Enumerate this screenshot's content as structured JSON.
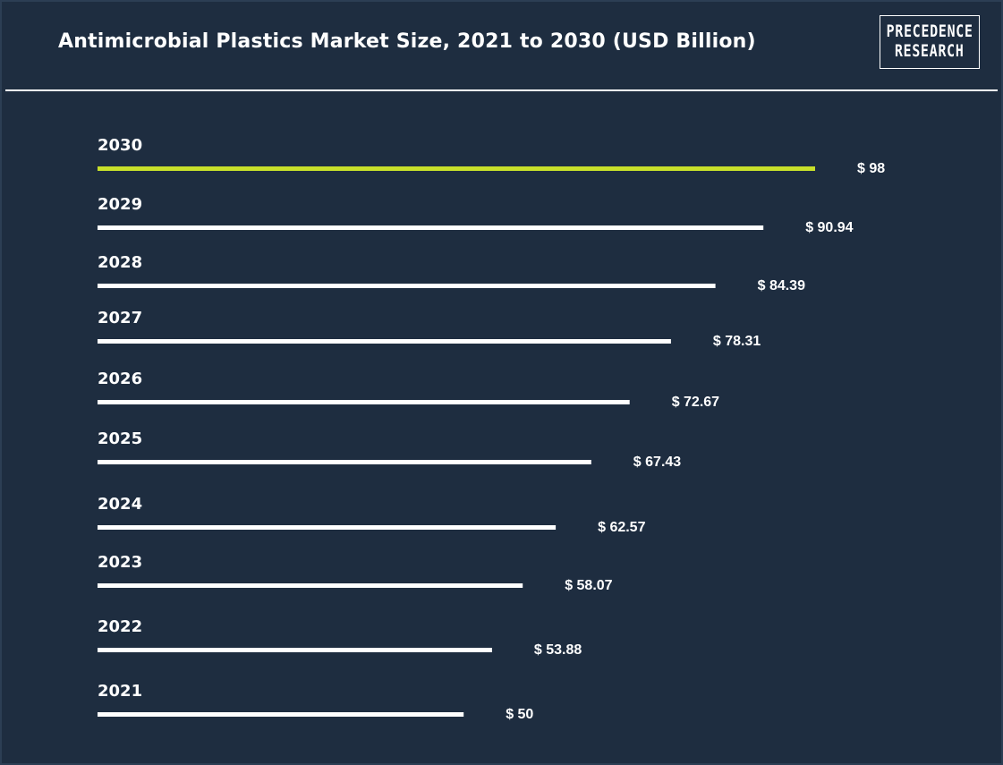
{
  "header": {
    "title": "Antimicrobial Plastics Market Size, 2021 to 2030 (USD Billion)",
    "logo_line1": "PRECEDENCE",
    "logo_line2": "RESEARCH"
  },
  "colors": {
    "background": "#1e2d40",
    "highlight_bar": "#c8e02a",
    "bar": "#ffffff"
  },
  "chart_data": {
    "type": "bar",
    "orientation": "horizontal",
    "title": "Antimicrobial Plastics Market Size, 2021 to 2030 (USD Billion)",
    "categories": [
      "2030",
      "2029",
      "2028",
      "2027",
      "2026",
      "2025",
      "2024",
      "2023",
      "2022",
      "2021"
    ],
    "values": [
      98,
      90.94,
      84.39,
      78.31,
      72.67,
      67.43,
      62.57,
      58.07,
      53.88,
      50
    ],
    "value_labels": [
      "$ 98",
      "$ 90.94",
      "$ 84.39",
      "$ 78.31",
      "$ 72.67",
      "$ 67.43",
      "$ 62.57",
      "$ 58.07",
      "$ 53.88",
      "$ 50"
    ],
    "highlight_category": "2030",
    "xlabel": "",
    "ylabel": "",
    "grid": false,
    "legend": "none"
  }
}
